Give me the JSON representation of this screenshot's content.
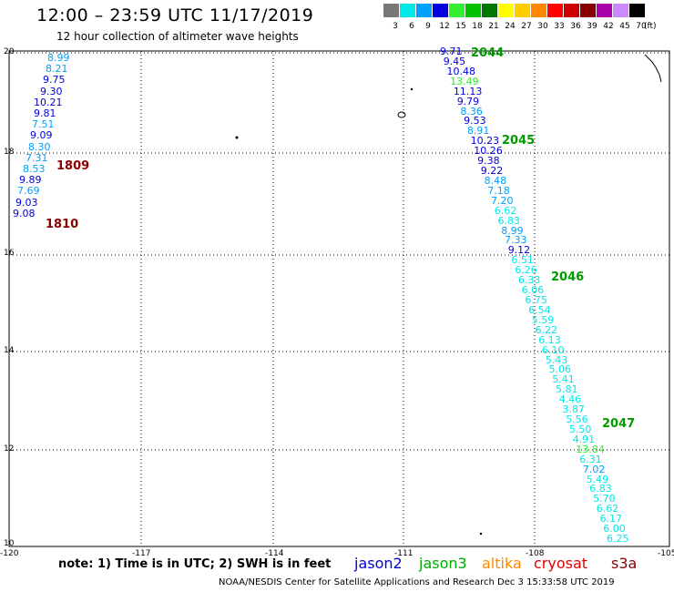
{
  "header": {
    "title": "12:00 – 23:59 UTC 11/17/2019",
    "subtitle": "12 hour collection of altimeter wave heights"
  },
  "legend": {
    "bins": [
      {
        "label": "3",
        "color": "#777777"
      },
      {
        "label": "6",
        "color": "#00e8e8"
      },
      {
        "label": "9",
        "color": "#00a0ff"
      },
      {
        "label": "12",
        "color": "#0000dd"
      },
      {
        "label": "15",
        "color": "#33ee33"
      },
      {
        "label": "18",
        "color": "#00c000"
      },
      {
        "label": "21",
        "color": "#007700"
      },
      {
        "label": "24",
        "color": "#ffff00"
      },
      {
        "label": "27",
        "color": "#ffcc00"
      },
      {
        "label": "30",
        "color": "#ff8800"
      },
      {
        "label": "33",
        "color": "#ff0000"
      },
      {
        "label": "36",
        "color": "#cc0000"
      },
      {
        "label": "39",
        "color": "#880000"
      },
      {
        "label": "42",
        "color": "#aa00aa"
      },
      {
        "label": "45",
        "color": "#cc88ff"
      },
      {
        "label": "70",
        "color": "#000000"
      }
    ],
    "unit": "(ft)"
  },
  "axes": {
    "lat_labels": [
      "20",
      "18",
      "16",
      "14",
      "12",
      "10"
    ],
    "lon_labels": [
      "-120",
      "-117",
      "-114",
      "-111",
      "-108",
      "-105"
    ]
  },
  "west_track": {
    "values": [
      "8.99",
      "8.21",
      "9.75",
      "9.30",
      "10.21",
      "9.81",
      "7.51",
      "9.09",
      "8.30",
      "7.31",
      "8.53",
      "9.89",
      "7.69",
      "9.03",
      "9.08"
    ],
    "colors": [
      "#00a0ff",
      "#00a0ff",
      "#0000dd",
      "#0000dd",
      "#0000dd",
      "#0000dd",
      "#00a0ff",
      "#0000dd",
      "#00a0ff",
      "#00a0ff",
      "#00a0ff",
      "#0000dd",
      "#00a0ff",
      "#0000dd",
      "#0000dd"
    ],
    "passes": [
      {
        "label": "1809",
        "color": "#880000"
      },
      {
        "label": "1810",
        "color": "#880000"
      }
    ]
  },
  "east_track": {
    "values": [
      "9.71",
      "9.45",
      "10.48",
      "13.49",
      "11.13",
      "9.79",
      "8.36",
      "9.53",
      "8.91",
      "10.23",
      "10.26",
      "9.38",
      "9.22",
      "8.48",
      "7.18",
      "7.20",
      "6.62",
      "6.83",
      "8.99",
      "7.33",
      "9.12",
      "6.51",
      "6.26",
      "6.33",
      "6.06",
      "6.75",
      "6.54",
      "5.59",
      "6.22",
      "6.13",
      "6.10",
      "5.43",
      "5.06",
      "5.41",
      "5.81",
      "4.46",
      "3.87",
      "5.56",
      "5.50",
      "4.91",
      "13.84",
      "6.31",
      "7.02",
      "5.49",
      "6.83",
      "5.70",
      "6.62",
      "6.17",
      "6.00",
      "6.25"
    ],
    "colors": [
      "#0000dd",
      "#0000dd",
      "#0000dd",
      "#33ee33",
      "#0000dd",
      "#0000dd",
      "#00a0ff",
      "#0000dd",
      "#00a0ff",
      "#0000dd",
      "#0000dd",
      "#0000dd",
      "#0000dd",
      "#00a0ff",
      "#00a0ff",
      "#00a0ff",
      "#00e8e8",
      "#00e8e8",
      "#00a0ff",
      "#00a0ff",
      "#0000dd",
      "#00e8e8",
      "#00e8e8",
      "#00e8e8",
      "#00e8e8",
      "#00e8e8",
      "#00e8e8",
      "#00e8e8",
      "#00e8e8",
      "#00e8e8",
      "#00e8e8",
      "#00e8e8",
      "#00e8e8",
      "#00e8e8",
      "#00e8e8",
      "#00e8e8",
      "#00e8e8",
      "#00e8e8",
      "#00e8e8",
      "#00e8e8",
      "#33ee33",
      "#00e8e8",
      "#00a0ff",
      "#00e8e8",
      "#00e8e8",
      "#00e8e8",
      "#00e8e8",
      "#00e8e8",
      "#00e8e8",
      "#00e8e8"
    ],
    "passes": [
      {
        "label": "2044",
        "color": "#009900"
      },
      {
        "label": "2045",
        "color": "#009900"
      },
      {
        "label": "2046",
        "color": "#009900"
      },
      {
        "label": "2047",
        "color": "#009900"
      }
    ]
  },
  "footer": {
    "note": "note: 1) Time is in UTC; 2) SWH is in feet",
    "satellites": [
      {
        "label": "jason2",
        "color": "#0000dd"
      },
      {
        "label": "jason3",
        "color": "#00aa00"
      },
      {
        "label": "altika",
        "color": "#ff8800"
      },
      {
        "label": "cryosat",
        "color": "#dd0000"
      },
      {
        "label": "s3a",
        "color": "#880000"
      }
    ],
    "credit": "NOAA/NESDIS Center for Satellite Applications and Research    Dec  3 15:33:58 UTC 2019"
  }
}
